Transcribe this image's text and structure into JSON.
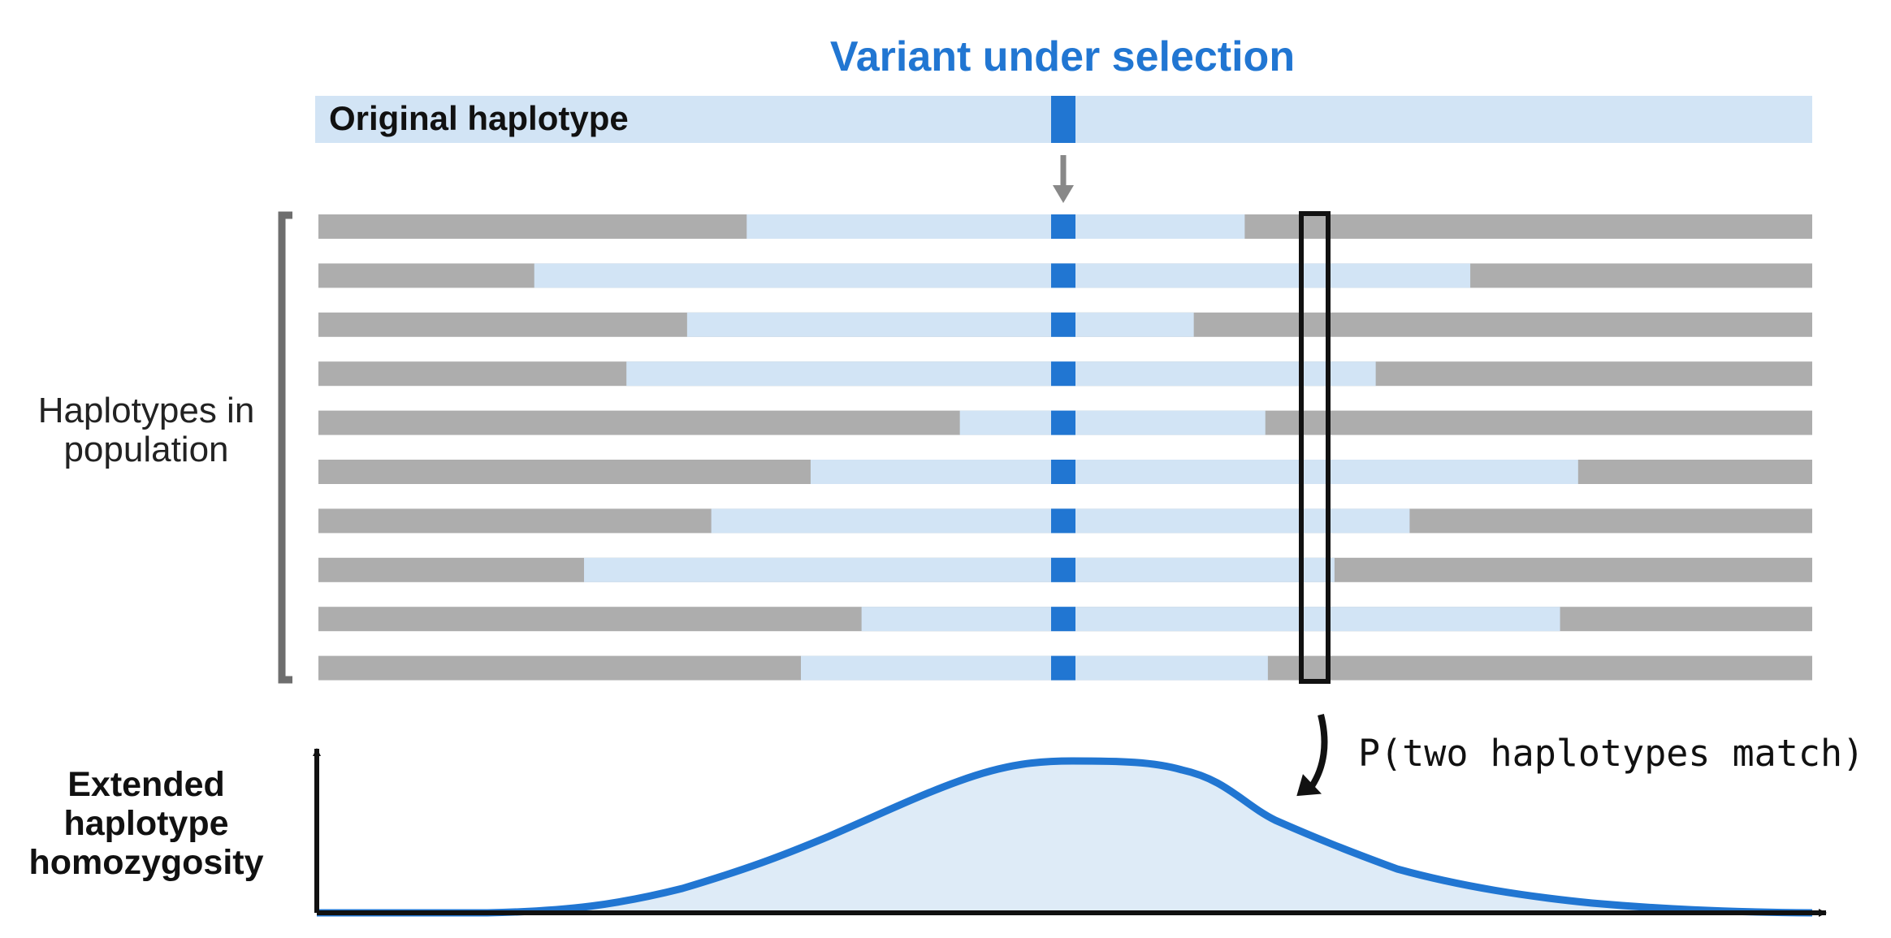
{
  "title": "Variant under selection",
  "original_label": "Original haplotype",
  "population_label": "Haplotypes in population",
  "ehh_label": "Extended haplotype homozygosity",
  "probability_label": "P(two haplotypes match)",
  "colors": {
    "accent": "#2176d2",
    "shared": "#d2e4f5",
    "other": "#adadad",
    "curve_fill": "#deebf7",
    "arrow": "#888888",
    "bracket": "#6e6e6e",
    "text": "#111111"
  },
  "haplotypes": [
    {
      "shared_start": 0.2867,
      "shared_end": 0.6201
    },
    {
      "shared_start": 0.1445,
      "shared_end": 0.7711
    },
    {
      "shared_start": 0.2468,
      "shared_end": 0.586
    },
    {
      "shared_start": 0.2062,
      "shared_end": 0.7078
    },
    {
      "shared_start": 0.4294,
      "shared_end": 0.6339
    },
    {
      "shared_start": 0.3295,
      "shared_end": 0.8433
    },
    {
      "shared_start": 0.263,
      "shared_end": 0.7305
    },
    {
      "shared_start": 0.1778,
      "shared_end": 0.6802
    },
    {
      "shared_start": 0.3636,
      "shared_end": 0.8312
    },
    {
      "shared_start": 0.323,
      "shared_end": 0.6356
    }
  ]
}
